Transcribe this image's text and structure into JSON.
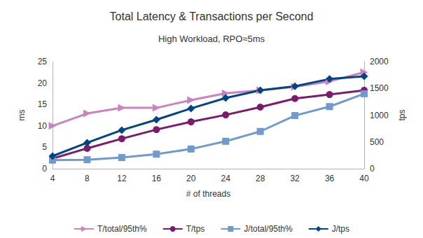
{
  "chart_data": {
    "type": "line",
    "title": "Total Latency & Transactions per Second",
    "subtitle": "High Workload, RPO≈5ms",
    "x_label": "# of threads",
    "y_label": "ms",
    "y2_label": "tps",
    "categories": [
      4,
      8,
      12,
      16,
      20,
      24,
      28,
      32,
      36,
      40
    ],
    "ylim": [
      0,
      25
    ],
    "yticks": [
      0,
      5,
      10,
      15,
      20,
      25
    ],
    "y2lim": [
      0,
      2000
    ],
    "y2ticks": [
      0,
      500,
      1000,
      1500,
      2000
    ],
    "grid": false,
    "legend": "bottom",
    "series": [
      {
        "name": "T/total/95th%",
        "color": "#c983c0",
        "marker": "triangle-right",
        "values": [
          10.0,
          12.9,
          14.2,
          14.2,
          16.0,
          17.6,
          18.3,
          19.1,
          20.4,
          22.5
        ]
      },
      {
        "name": "T/tps",
        "color": "#7e1a6c",
        "marker": "circle",
        "axis": "y2",
        "values": [
          190,
          380,
          560,
          730,
          875,
          1005,
          1150,
          1310,
          1385,
          1465
        ]
      },
      {
        "name": "J/total/95th%",
        "color": "#6f9ad0",
        "marker": "square",
        "values": [
          2.0,
          2.1,
          2.6,
          3.4,
          4.6,
          6.4,
          8.7,
          12.4,
          14.5,
          17.5
        ]
      },
      {
        "name": "J/tps",
        "color": "#004586",
        "marker": "diamond",
        "axis": "y2",
        "values": [
          235,
          485,
          720,
          915,
          1125,
          1320,
          1465,
          1540,
          1675,
          1725
        ]
      }
    ]
  }
}
